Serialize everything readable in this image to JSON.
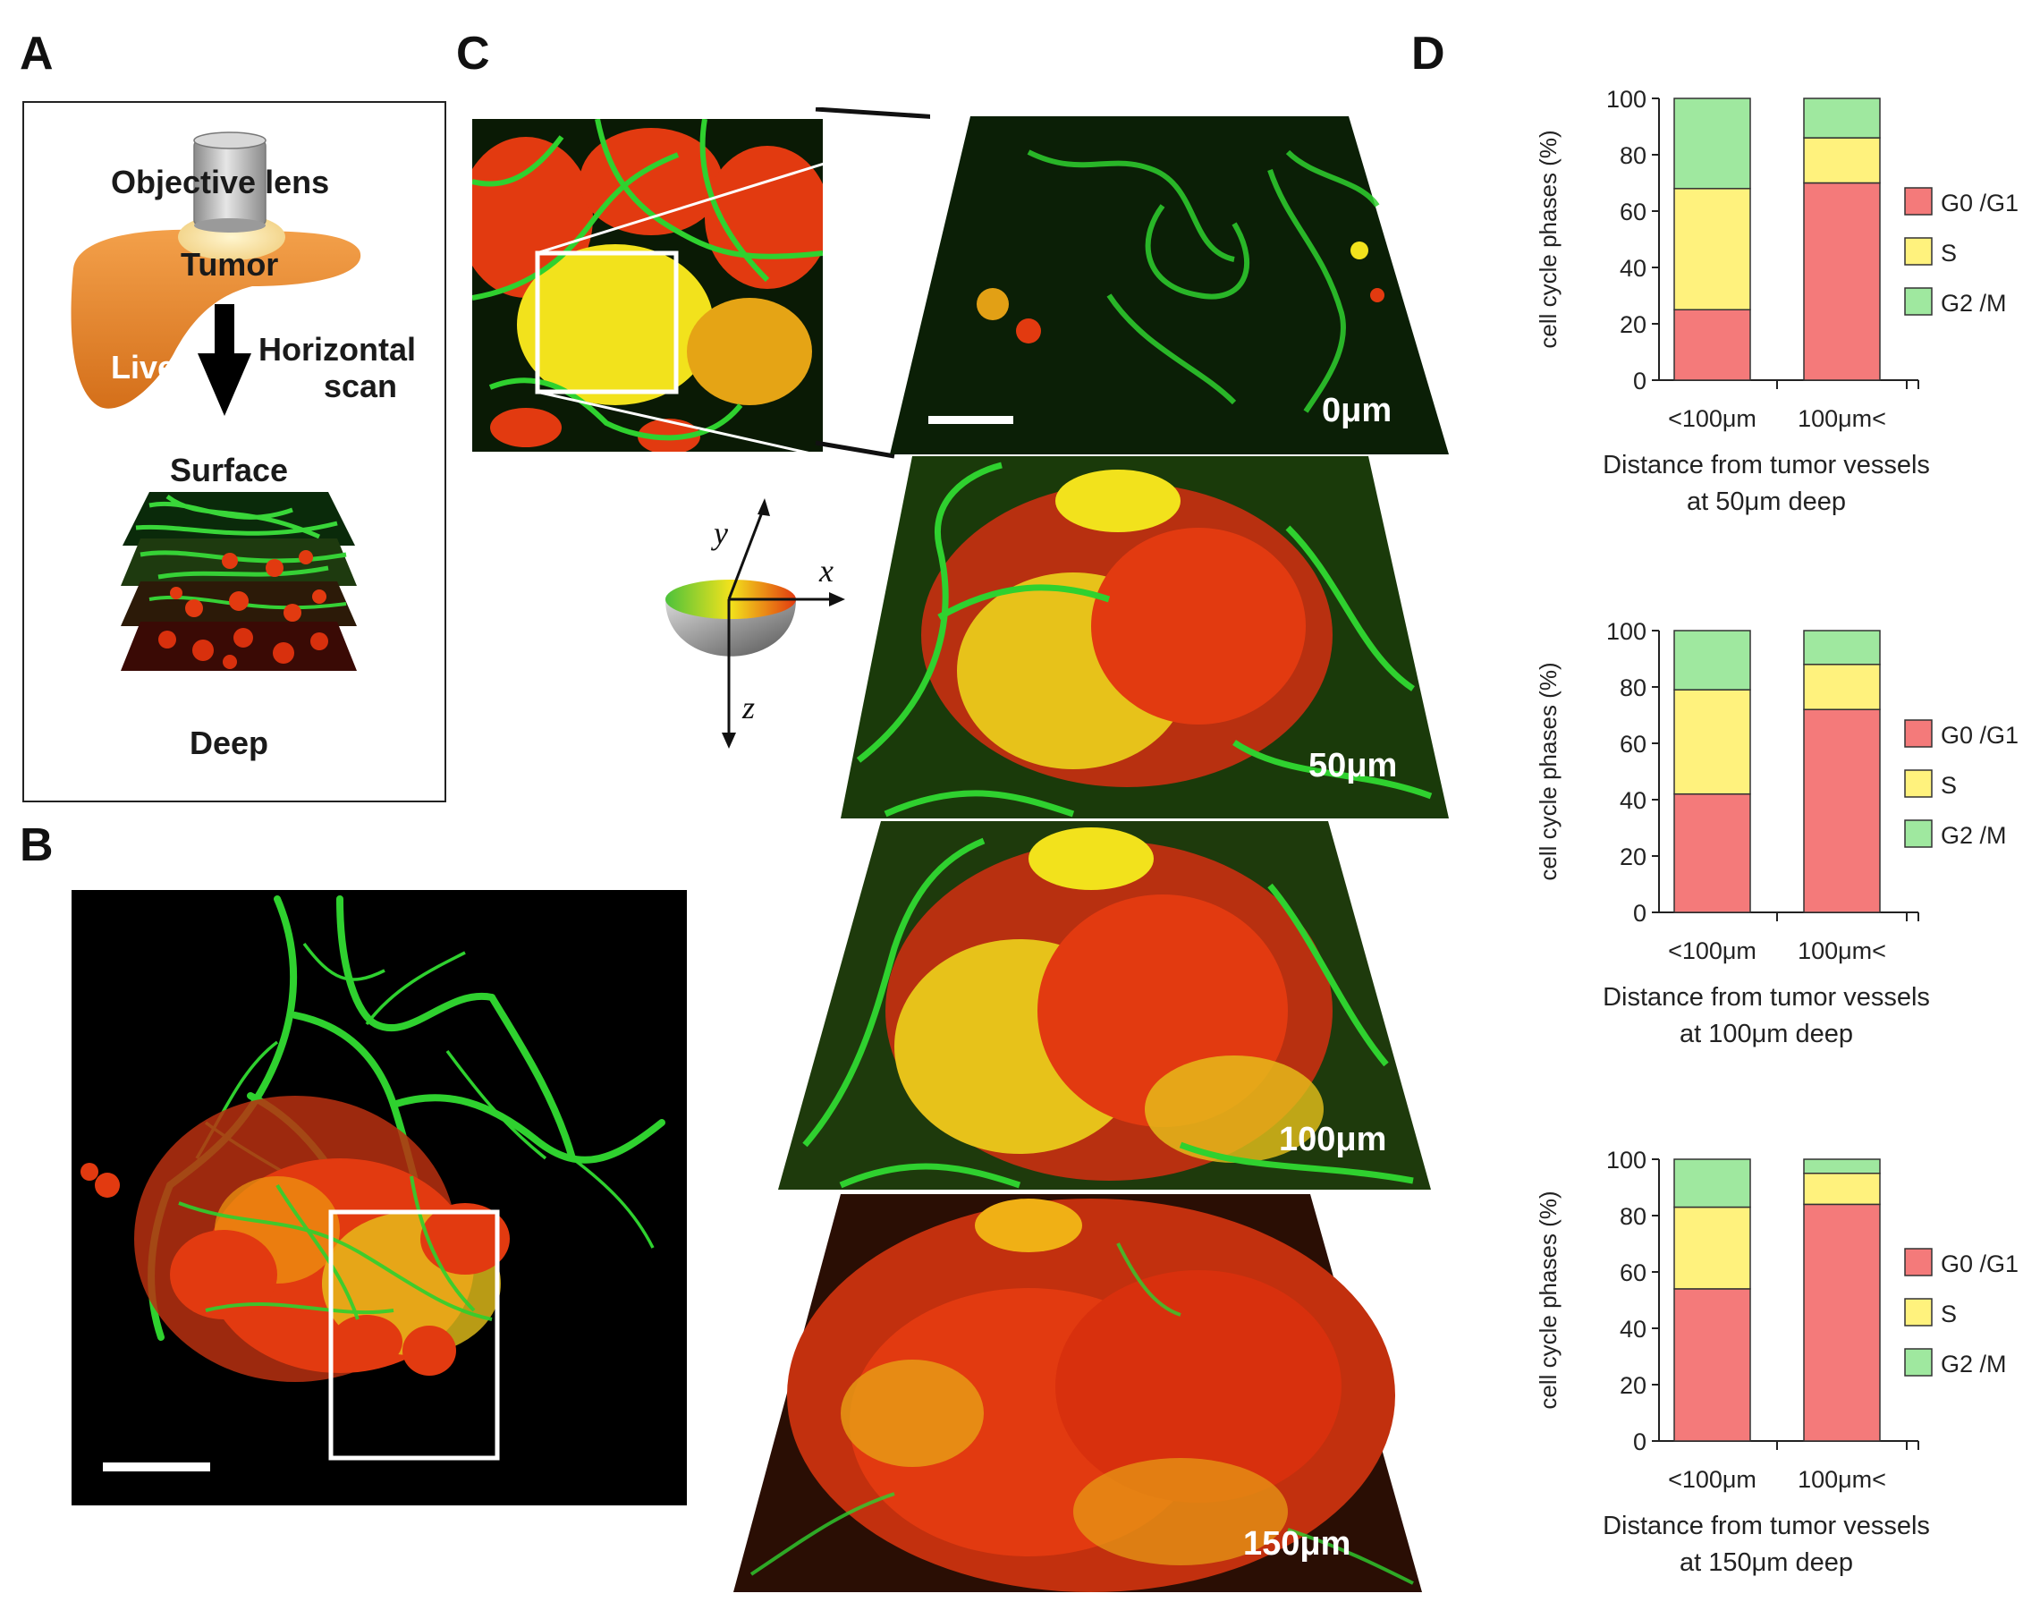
{
  "panels": {
    "a_letter": "A",
    "b_letter": "B",
    "c_letter": "C",
    "d_letter": "D"
  },
  "panel_a": {
    "objective_label": "Objective lens",
    "tumor_label": "Tumor",
    "liver_label": "Liver",
    "scan_label_line1": "Horizontal",
    "scan_label_line2": "scan",
    "surface_label": "Surface",
    "deep_label": "Deep",
    "colors": {
      "liver": "#e8892f",
      "liver_dark": "#c66a17",
      "tumor": "#f6df9a",
      "lens": "#bcbcbc"
    }
  },
  "panel_c": {
    "depths": [
      "0μm",
      "50μm",
      "100μm",
      "150μm"
    ],
    "axes": {
      "x": "x",
      "y": "y",
      "z": "z"
    }
  },
  "colors": {
    "g0g1": "#f47a7a",
    "s": "#fff27d",
    "g2m": "#9fe89f",
    "vessel_green": "#2fd12f",
    "cell_red": "#e23a10",
    "cell_yellow": "#f2e21c"
  },
  "chart_data": [
    {
      "type": "bar",
      "stacked": true,
      "categories": [
        "<100μm",
        "100μm<"
      ],
      "series": [
        {
          "name": "G0 /G1",
          "values": [
            25,
            70
          ]
        },
        {
          "name": "S",
          "values": [
            43,
            16
          ]
        },
        {
          "name": "G2 /M",
          "values": [
            32,
            14
          ]
        }
      ],
      "ylabel": "cell cycle phases (%)",
      "ylim": [
        0,
        100
      ],
      "yticks": [
        0,
        20,
        40,
        60,
        80,
        100
      ],
      "caption_line1": "Distance from tumor vessels",
      "caption_line2": "at 50μm deep",
      "legend_position": "right"
    },
    {
      "type": "bar",
      "stacked": true,
      "categories": [
        "<100μm",
        "100μm<"
      ],
      "series": [
        {
          "name": "G0 /G1",
          "values": [
            42,
            72
          ]
        },
        {
          "name": "S",
          "values": [
            37,
            16
          ]
        },
        {
          "name": "G2 /M",
          "values": [
            21,
            12
          ]
        }
      ],
      "ylabel": "cell cycle phases (%)",
      "ylim": [
        0,
        100
      ],
      "yticks": [
        0,
        20,
        40,
        60,
        80,
        100
      ],
      "caption_line1": "Distance from tumor vessels",
      "caption_line2": "at 100μm deep",
      "legend_position": "right"
    },
    {
      "type": "bar",
      "stacked": true,
      "categories": [
        "<100μm",
        "100μm<"
      ],
      "series": [
        {
          "name": "G0 /G1",
          "values": [
            54,
            84
          ]
        },
        {
          "name": "S",
          "values": [
            29,
            11
          ]
        },
        {
          "name": "G2 /M",
          "values": [
            17,
            5
          ]
        }
      ],
      "ylabel": "cell cycle phases (%)",
      "ylim": [
        0,
        100
      ],
      "yticks": [
        0,
        20,
        40,
        60,
        80,
        100
      ],
      "caption_line1": "Distance from tumor vessels",
      "caption_line2": "at 150μm deep",
      "legend_position": "right"
    }
  ]
}
